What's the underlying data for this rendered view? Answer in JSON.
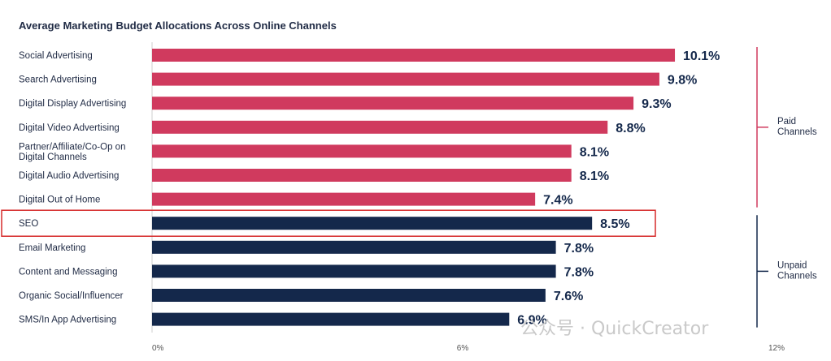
{
  "chart_data": {
    "type": "bar",
    "orientation": "horizontal",
    "title": "Average Marketing Budget Allocations Across Online Channels",
    "categories": [
      "Social Advertising",
      "Search Advertising",
      "Digital Display Advertising",
      "Digital Video Advertising",
      "Partner/Affiliate/Co-Op on Digital Channels",
      "Digital Audio Advertising",
      "Digital Out of Home",
      "SEO",
      "Email Marketing",
      "Content and Messaging",
      "Organic Social/Influencer",
      "SMS/In App Advertising"
    ],
    "values": [
      10.1,
      9.8,
      9.3,
      8.8,
      8.1,
      8.1,
      7.4,
      8.5,
      7.8,
      7.8,
      7.6,
      6.9
    ],
    "value_labels": [
      "10.1%",
      "9.8%",
      "9.3%",
      "8.8%",
      "8.1%",
      "8.1%",
      "7.4%",
      "8.5%",
      "7.8%",
      "7.8%",
      "7.6%",
      "6.9%"
    ],
    "xlim": [
      0,
      12
    ],
    "xticks": [
      {
        "value": 0,
        "label": "0%"
      },
      {
        "value": 6,
        "label": "6%"
      },
      {
        "value": 12,
        "label": "12%"
      }
    ],
    "groups": [
      {
        "name_lines": [
          "Paid",
          "Channels"
        ],
        "start": 0,
        "end": 6,
        "color": "#d03a5e"
      },
      {
        "name_lines": [
          "Unpaid",
          "Channels"
        ],
        "start": 7,
        "end": 11,
        "color": "#14284b"
      }
    ],
    "highlight": {
      "category_index": 7,
      "color": "#d62b2b"
    },
    "grid": false,
    "watermark": "公众号 · QuickCreator"
  }
}
